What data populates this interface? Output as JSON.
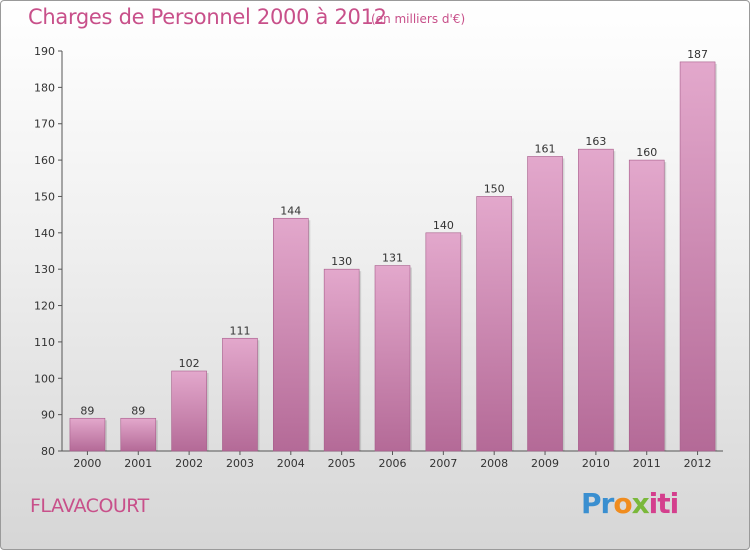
{
  "title": "Charges de Personnel 2000 à 2012",
  "subtitle": "(en milliers d'€)",
  "commune": "FLAVACOURT",
  "logo": {
    "part1": "Pr",
    "part2": "o",
    "part3": "x",
    "part4": "iti"
  },
  "colors": {
    "bar_top": "#e3a8cc",
    "bar_bottom": "#b46a97",
    "title": "#c8508a"
  },
  "chart_data": {
    "type": "bar",
    "categories": [
      "2000",
      "2001",
      "2002",
      "2003",
      "2004",
      "2005",
      "2006",
      "2007",
      "2008",
      "2009",
      "2010",
      "2011",
      "2012"
    ],
    "values": [
      89,
      89,
      102,
      111,
      144,
      130,
      131,
      140,
      150,
      161,
      163,
      160,
      187
    ],
    "ylim": [
      80,
      190
    ],
    "yticks": [
      80,
      90,
      100,
      110,
      120,
      130,
      140,
      150,
      160,
      170,
      180,
      190
    ],
    "grid": false,
    "data_labels": true
  }
}
